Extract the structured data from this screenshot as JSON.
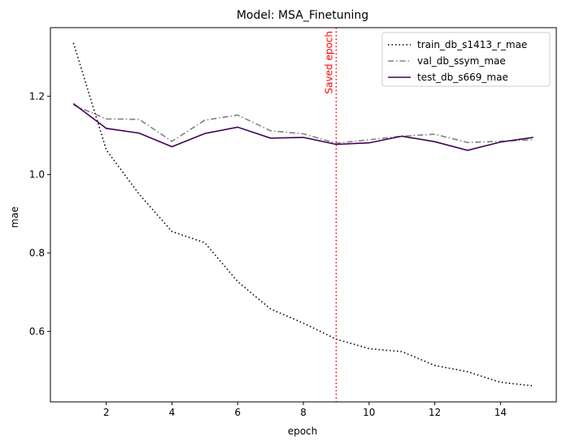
{
  "chart_data": {
    "type": "line",
    "title": "Model: MSA_Finetuning",
    "xlabel": "epoch",
    "ylabel": "mae",
    "xlim": [
      0.3,
      15.7
    ],
    "ylim": [
      0.42,
      1.375
    ],
    "xticks": [
      2,
      4,
      6,
      8,
      10,
      12,
      14
    ],
    "yticks": [
      0.6,
      0.8,
      1.0,
      1.2
    ],
    "xtick_labels": [
      "2",
      "4",
      "6",
      "8",
      "10",
      "12",
      "14"
    ],
    "ytick_labels": [
      "0.6",
      "0.8",
      "1.0",
      "1.2"
    ],
    "grid": false,
    "legend_position": "top-right",
    "x": [
      1,
      2,
      3,
      4,
      5,
      6,
      7,
      8,
      9,
      10,
      11,
      12,
      13,
      14,
      15
    ],
    "series": [
      {
        "name": "train_db_s1413_r_mae",
        "style": "dotted",
        "color": "#000000",
        "values": [
          1.336,
          1.063,
          0.95,
          0.855,
          0.826,
          0.727,
          0.657,
          0.621,
          0.58,
          0.556,
          0.548,
          0.513,
          0.497,
          0.47,
          0.461
        ]
      },
      {
        "name": "val_db_ssym_mae",
        "style": "dashdot",
        "color": "#808080",
        "values": [
          1.178,
          1.142,
          1.141,
          1.085,
          1.139,
          1.152,
          1.112,
          1.104,
          1.08,
          1.089,
          1.098,
          1.103,
          1.082,
          1.085,
          1.089
        ]
      },
      {
        "name": "test_db_s669_mae",
        "style": "solid",
        "color": "#440154",
        "values": [
          1.181,
          1.118,
          1.106,
          1.071,
          1.105,
          1.121,
          1.093,
          1.095,
          1.077,
          1.081,
          1.098,
          1.084,
          1.062,
          1.083,
          1.095
        ]
      }
    ],
    "annotations": [
      {
        "type": "vline",
        "x": 9,
        "label": "Saved epoch",
        "color": "#ff0000",
        "style": "dotted"
      }
    ]
  }
}
